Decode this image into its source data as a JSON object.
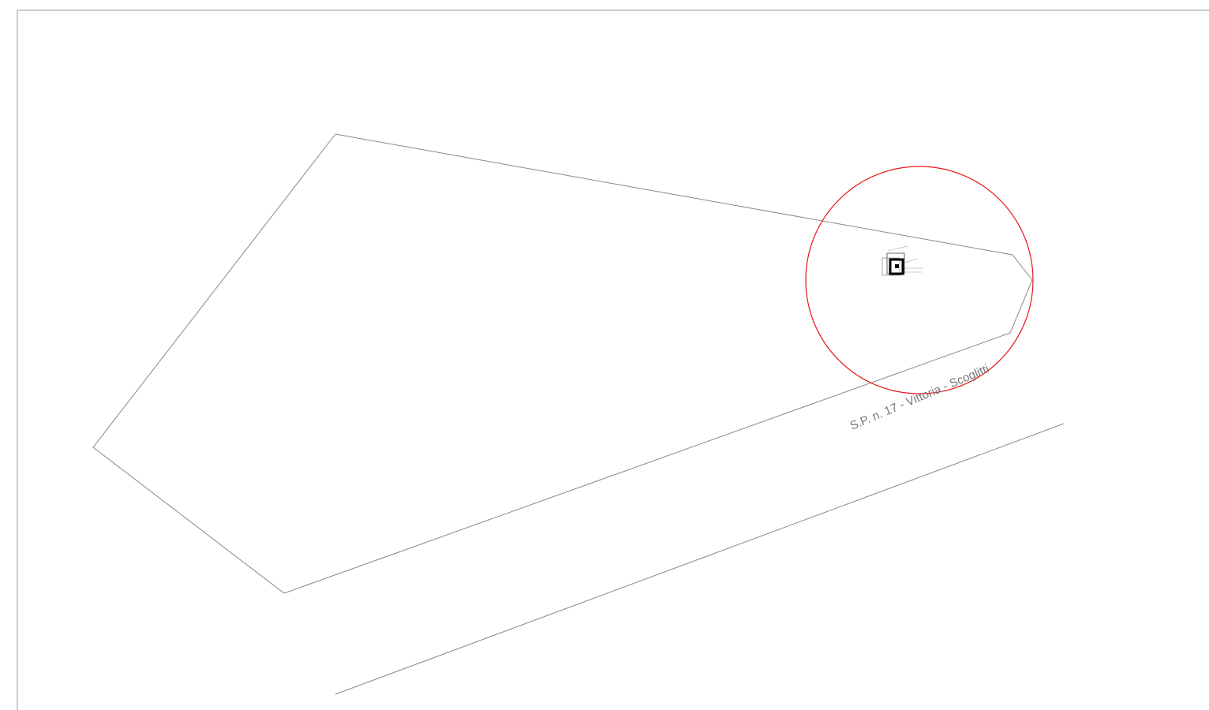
{
  "road_label": "S.P. n. 17 - Vittoria - Scoglitti"
}
